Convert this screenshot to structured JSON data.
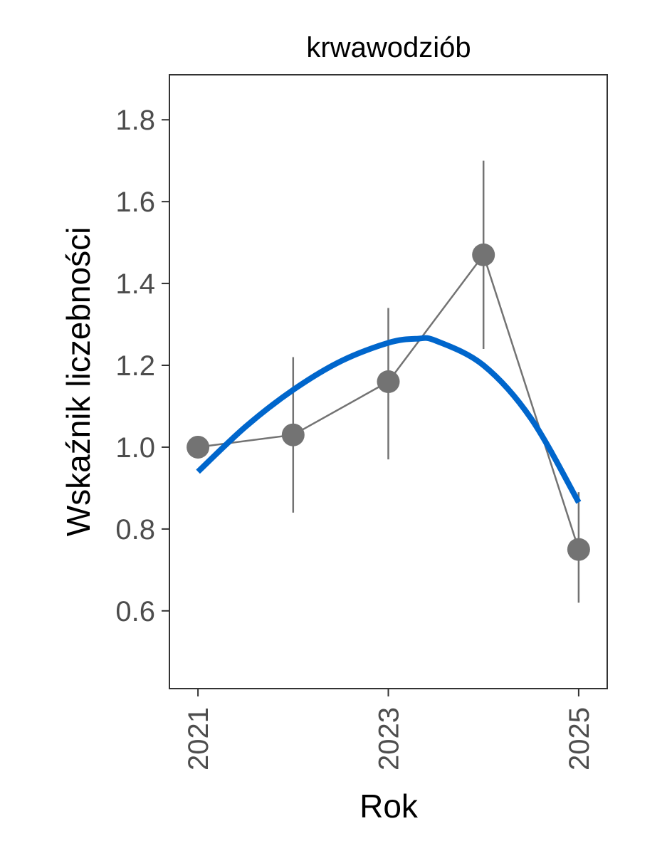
{
  "chart_data": {
    "type": "line",
    "title": "krwawodziób",
    "xlabel": "Rok",
    "ylabel": "Wskaźnik liczebności",
    "xlim": [
      2020.7,
      2025.3
    ],
    "ylim": [
      0.41,
      1.91
    ],
    "x_ticks": [
      2021,
      2023,
      2025
    ],
    "y_ticks": [
      0.6,
      0.8,
      1.0,
      1.2,
      1.4,
      1.6,
      1.8
    ],
    "y_tick_labels": [
      "0.6",
      "0.8",
      "1.0",
      "1.2",
      "1.4",
      "1.6",
      "1.8"
    ],
    "grid": false,
    "series": [
      {
        "kind": "points-with-errorbars",
        "color": "#737373",
        "points": [
          {
            "x": 2021,
            "y": 1.0,
            "lower": 1.0,
            "upper": 1.0
          },
          {
            "x": 2022,
            "y": 1.03,
            "lower": 0.84,
            "upper": 1.22
          },
          {
            "x": 2023,
            "y": 1.16,
            "lower": 0.97,
            "upper": 1.34
          },
          {
            "x": 2024,
            "y": 1.47,
            "lower": 1.24,
            "upper": 1.7
          },
          {
            "x": 2025,
            "y": 0.75,
            "lower": 0.62,
            "upper": 0.89
          }
        ]
      },
      {
        "kind": "trend-curve",
        "color": "#0066cc",
        "x": [
          2021,
          2021.5,
          2022,
          2022.5,
          2023,
          2023.3,
          2023.5,
          2024,
          2024.5,
          2025
        ],
        "y": [
          0.94,
          1.05,
          1.14,
          1.21,
          1.255,
          1.265,
          1.26,
          1.2,
          1.07,
          0.865
        ]
      }
    ]
  }
}
